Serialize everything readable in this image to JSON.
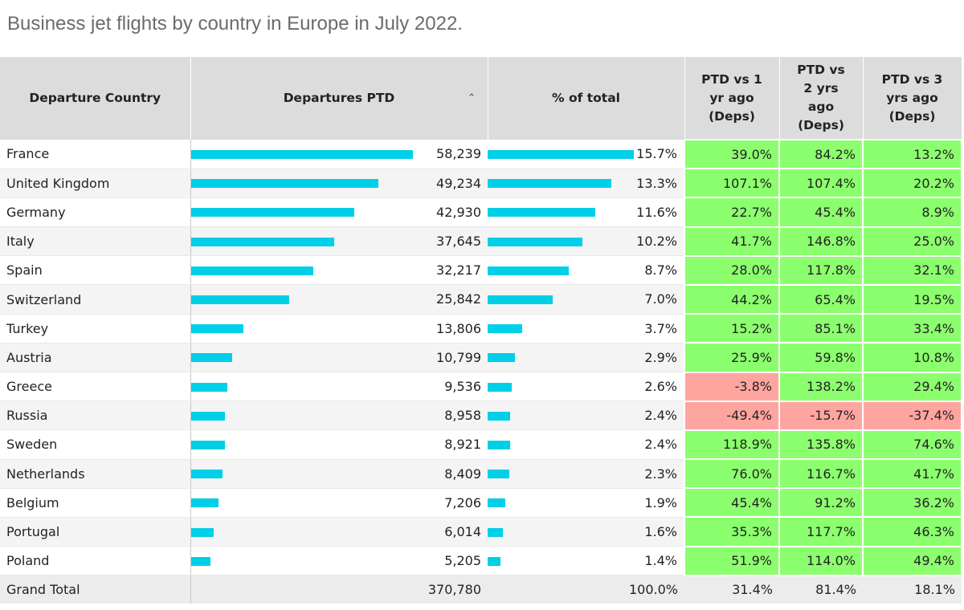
{
  "title": "Business jet flights by country in Europe in July 2022.",
  "headers": {
    "country": "Departure Country",
    "departures": "Departures PTD",
    "pct_total": "% of total",
    "vs1": [
      "PTD vs 1",
      "yr ago",
      "(Deps)"
    ],
    "vs2": [
      "PTD vs",
      "2 yrs",
      "ago",
      "(Deps)"
    ],
    "vs3": [
      "PTD vs 3",
      "yrs ago",
      "(Deps)"
    ],
    "sort_icon": "chevron-up-icon"
  },
  "colors": {
    "bar": "#00cfe8",
    "positive": "#8cff6e",
    "negative": "#ffa5a0",
    "header_bg": "#dcdcdc"
  },
  "chart_data": {
    "type": "table",
    "title": "Business jet flights by country in Europe in July 2022.",
    "columns": [
      "Departure Country",
      "Departures PTD",
      "% of total",
      "PTD vs 1 yr ago (Deps)",
      "PTD vs 2 yrs ago (Deps)",
      "PTD vs 3 yrs ago (Deps)"
    ],
    "bar_max": 58239,
    "rows": [
      {
        "country": "France",
        "departures": 58239,
        "departures_label": "58,239",
        "pct": 15.7,
        "pct_label": "15.7%",
        "vs1": "39.0%",
        "vs2": "84.2%",
        "vs3": "13.2%"
      },
      {
        "country": "United Kingdom",
        "departures": 49234,
        "departures_label": "49,234",
        "pct": 13.3,
        "pct_label": "13.3%",
        "vs1": "107.1%",
        "vs2": "107.4%",
        "vs3": "20.2%"
      },
      {
        "country": "Germany",
        "departures": 42930,
        "departures_label": "42,930",
        "pct": 11.6,
        "pct_label": "11.6%",
        "vs1": "22.7%",
        "vs2": "45.4%",
        "vs3": "8.9%"
      },
      {
        "country": "Italy",
        "departures": 37645,
        "departures_label": "37,645",
        "pct": 10.2,
        "pct_label": "10.2%",
        "vs1": "41.7%",
        "vs2": "146.8%",
        "vs3": "25.0%"
      },
      {
        "country": "Spain",
        "departures": 32217,
        "departures_label": "32,217",
        "pct": 8.7,
        "pct_label": "8.7%",
        "vs1": "28.0%",
        "vs2": "117.8%",
        "vs3": "32.1%"
      },
      {
        "country": "Switzerland",
        "departures": 25842,
        "departures_label": "25,842",
        "pct": 7.0,
        "pct_label": "7.0%",
        "vs1": "44.2%",
        "vs2": "65.4%",
        "vs3": "19.5%"
      },
      {
        "country": "Turkey",
        "departures": 13806,
        "departures_label": "13,806",
        "pct": 3.7,
        "pct_label": "3.7%",
        "vs1": "15.2%",
        "vs2": "85.1%",
        "vs3": "33.4%"
      },
      {
        "country": "Austria",
        "departures": 10799,
        "departures_label": "10,799",
        "pct": 2.9,
        "pct_label": "2.9%",
        "vs1": "25.9%",
        "vs2": "59.8%",
        "vs3": "10.8%"
      },
      {
        "country": "Greece",
        "departures": 9536,
        "departures_label": "9,536",
        "pct": 2.6,
        "pct_label": "2.6%",
        "vs1": "-3.8%",
        "vs2": "138.2%",
        "vs3": "29.4%"
      },
      {
        "country": "Russia",
        "departures": 8958,
        "departures_label": "8,958",
        "pct": 2.4,
        "pct_label": "2.4%",
        "vs1": "-49.4%",
        "vs2": "-15.7%",
        "vs3": "-37.4%"
      },
      {
        "country": "Sweden",
        "departures": 8921,
        "departures_label": "8,921",
        "pct": 2.4,
        "pct_label": "2.4%",
        "vs1": "118.9%",
        "vs2": "135.8%",
        "vs3": "74.6%"
      },
      {
        "country": "Netherlands",
        "departures": 8409,
        "departures_label": "8,409",
        "pct": 2.3,
        "pct_label": "2.3%",
        "vs1": "76.0%",
        "vs2": "116.7%",
        "vs3": "41.7%"
      },
      {
        "country": "Belgium",
        "departures": 7206,
        "departures_label": "7,206",
        "pct": 1.9,
        "pct_label": "1.9%",
        "vs1": "45.4%",
        "vs2": "91.2%",
        "vs3": "36.2%"
      },
      {
        "country": "Portugal",
        "departures": 6014,
        "departures_label": "6,014",
        "pct": 1.6,
        "pct_label": "1.6%",
        "vs1": "35.3%",
        "vs2": "117.7%",
        "vs3": "46.3%"
      },
      {
        "country": "Poland",
        "departures": 5205,
        "departures_label": "5,205",
        "pct": 1.4,
        "pct_label": "1.4%",
        "vs1": "51.9%",
        "vs2": "114.0%",
        "vs3": "49.4%"
      }
    ],
    "total": {
      "label": "Grand Total",
      "departures": "370,780",
      "pct": "100.0%",
      "vs1": "31.4%",
      "vs2": "81.4%",
      "vs3": "18.1%"
    }
  }
}
